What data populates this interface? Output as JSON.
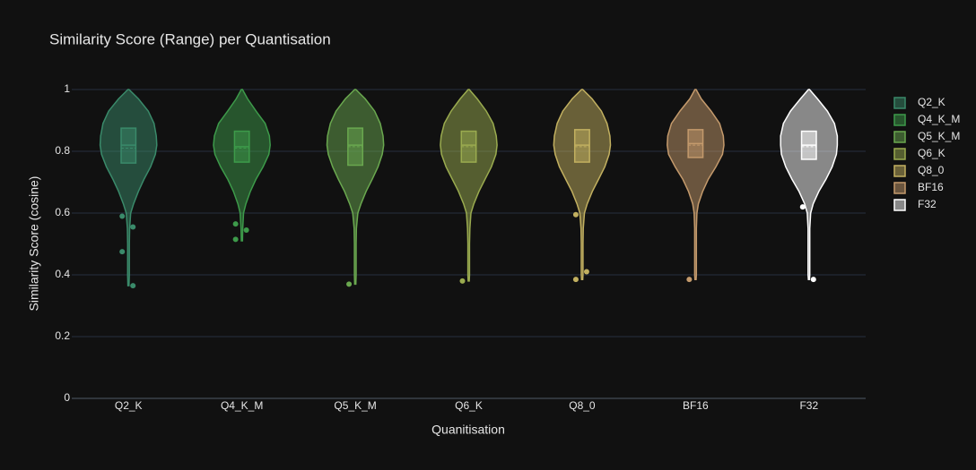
{
  "chart_data": {
    "type": "violin",
    "title": "Similarity Score (Range) per Quantisation",
    "x_label": "Quanitisation",
    "y_label": "Similarity Score (cosine)",
    "ylim": [
      0,
      1
    ],
    "yticks": [
      0,
      0.2,
      0.4,
      0.6,
      0.8,
      1
    ],
    "grid": true,
    "legend": "right",
    "categories": [
      "Q2_K",
      "Q4_K_M",
      "Q5_K_M",
      "Q6_K",
      "Q8_0",
      "BF16",
      "F32"
    ],
    "series": [
      {
        "name": "Q2_K",
        "color": "#3a8a6a",
        "q1": 0.762,
        "median": 0.82,
        "q3": 0.875,
        "mean": 0.81,
        "outliers": [
          0.59,
          0.555,
          0.475,
          0.365
        ],
        "kde_y": [
          1,
          0.97,
          0.93,
          0.89,
          0.85,
          0.82,
          0.79,
          0.75,
          0.71,
          0.67,
          0.63,
          0.6,
          0.55,
          0.5,
          0.45,
          0.4,
          0.365
        ],
        "kde_width": [
          0.02,
          0.35,
          0.7,
          0.9,
          0.98,
          1,
          0.95,
          0.78,
          0.55,
          0.35,
          0.18,
          0.08,
          0.04,
          0.03,
          0.03,
          0.03,
          0.02
        ]
      },
      {
        "name": "Q4_K_M",
        "color": "#3d9a4a",
        "q1": 0.765,
        "median": 0.815,
        "q3": 0.865,
        "mean": 0.81,
        "outliers": [
          0.565,
          0.545,
          0.515
        ],
        "kde_y": [
          1,
          0.97,
          0.93,
          0.89,
          0.85,
          0.82,
          0.79,
          0.75,
          0.71,
          0.67,
          0.63,
          0.6,
          0.55,
          0.51
        ],
        "kde_width": [
          0.02,
          0.2,
          0.5,
          0.82,
          0.97,
          1,
          0.95,
          0.75,
          0.5,
          0.3,
          0.14,
          0.06,
          0.03,
          0.02
        ]
      },
      {
        "name": "Q5_K_M",
        "color": "#6aa84f",
        "q1": 0.755,
        "median": 0.82,
        "q3": 0.875,
        "mean": 0.815,
        "outliers": [
          0.37
        ],
        "kde_y": [
          1,
          0.97,
          0.93,
          0.89,
          0.85,
          0.82,
          0.79,
          0.75,
          0.71,
          0.67,
          0.63,
          0.6,
          0.55,
          0.5,
          0.45,
          0.4,
          0.37
        ],
        "kde_width": [
          0.02,
          0.35,
          0.68,
          0.88,
          0.98,
          1,
          0.95,
          0.8,
          0.6,
          0.38,
          0.2,
          0.09,
          0.04,
          0.03,
          0.03,
          0.03,
          0.02
        ]
      },
      {
        "name": "Q6_K",
        "color": "#9aab4f",
        "q1": 0.765,
        "median": 0.82,
        "q3": 0.865,
        "mean": 0.815,
        "outliers": [
          0.38
        ],
        "kde_y": [
          1,
          0.97,
          0.93,
          0.89,
          0.85,
          0.82,
          0.79,
          0.75,
          0.71,
          0.67,
          0.63,
          0.6,
          0.55,
          0.5,
          0.45,
          0.4,
          0.38
        ],
        "kde_width": [
          0.02,
          0.3,
          0.62,
          0.86,
          0.97,
          1,
          0.96,
          0.8,
          0.58,
          0.36,
          0.18,
          0.08,
          0.04,
          0.03,
          0.03,
          0.03,
          0.02
        ]
      },
      {
        "name": "Q8_0",
        "color": "#c2b060",
        "q1": 0.765,
        "median": 0.82,
        "q3": 0.87,
        "mean": 0.815,
        "outliers": [
          0.595,
          0.41,
          0.385
        ],
        "kde_y": [
          1,
          0.97,
          0.93,
          0.89,
          0.85,
          0.82,
          0.79,
          0.75,
          0.71,
          0.67,
          0.63,
          0.6,
          0.55,
          0.5,
          0.45,
          0.4,
          0.385
        ],
        "kde_width": [
          0.02,
          0.35,
          0.68,
          0.88,
          0.98,
          1,
          0.95,
          0.8,
          0.58,
          0.36,
          0.18,
          0.08,
          0.04,
          0.03,
          0.03,
          0.03,
          0.02
        ]
      },
      {
        "name": "BF16",
        "color": "#c49a6c",
        "q1": 0.78,
        "median": 0.825,
        "q3": 0.87,
        "mean": 0.82,
        "outliers": [
          0.385
        ],
        "kde_y": [
          1,
          0.97,
          0.93,
          0.89,
          0.85,
          0.82,
          0.79,
          0.75,
          0.71,
          0.67,
          0.63,
          0.6,
          0.55,
          0.5,
          0.45,
          0.4,
          0.385
        ],
        "kde_width": [
          0.02,
          0.2,
          0.55,
          0.85,
          0.98,
          1,
          0.95,
          0.72,
          0.45,
          0.25,
          0.1,
          0.05,
          0.03,
          0.03,
          0.03,
          0.03,
          0.02
        ]
      },
      {
        "name": "F32",
        "color": "#ffffff",
        "q1": 0.774,
        "median": 0.82,
        "q3": 0.865,
        "mean": 0.815,
        "outliers": [
          0.62,
          0.385
        ],
        "kde_y": [
          1,
          0.97,
          0.93,
          0.89,
          0.85,
          0.82,
          0.79,
          0.75,
          0.71,
          0.67,
          0.63,
          0.6,
          0.55,
          0.5,
          0.45,
          0.4,
          0.385
        ],
        "kde_width": [
          0.02,
          0.3,
          0.65,
          0.9,
          1,
          1,
          0.97,
          0.82,
          0.6,
          0.35,
          0.15,
          0.06,
          0.03,
          0.03,
          0.03,
          0.03,
          0.02
        ]
      }
    ]
  }
}
